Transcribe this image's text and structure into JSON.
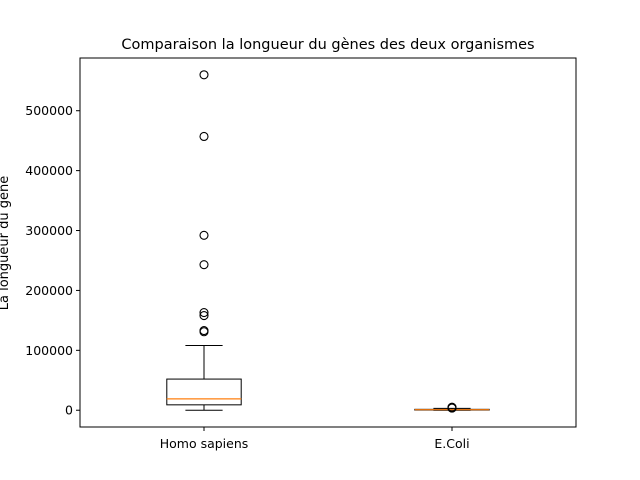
{
  "chart_data": {
    "type": "box",
    "title": "Comparaison la longueur du gènes des deux organismes",
    "xlabel": "",
    "ylabel": "La longueur du gène",
    "categories": [
      "Homo sapiens",
      "E.Coli"
    ],
    "ylim": [
      -28000,
      588000
    ],
    "yticks": [
      0,
      100000,
      200000,
      300000,
      400000,
      500000
    ],
    "ytick_labels": [
      "0",
      "100000",
      "200000",
      "300000",
      "400000",
      "500000"
    ],
    "boxes": [
      {
        "label": "Homo sapiens",
        "whislo": 0,
        "q1": 9000,
        "med": 19000,
        "q3": 52000,
        "whishi": 108000,
        "fliers": [
          131000,
          133000,
          158000,
          163000,
          243000,
          292000,
          457000,
          560000
        ]
      },
      {
        "label": "E.Coli",
        "whislo": 0,
        "q1": 300,
        "med": 900,
        "q3": 1500,
        "whishi": 3000,
        "fliers": [
          3500,
          4000,
          4500,
          5000
        ]
      }
    ],
    "colors": {
      "box": "#000000",
      "median": "#ff7f0e",
      "flier": "#000000"
    },
    "grid": false
  }
}
